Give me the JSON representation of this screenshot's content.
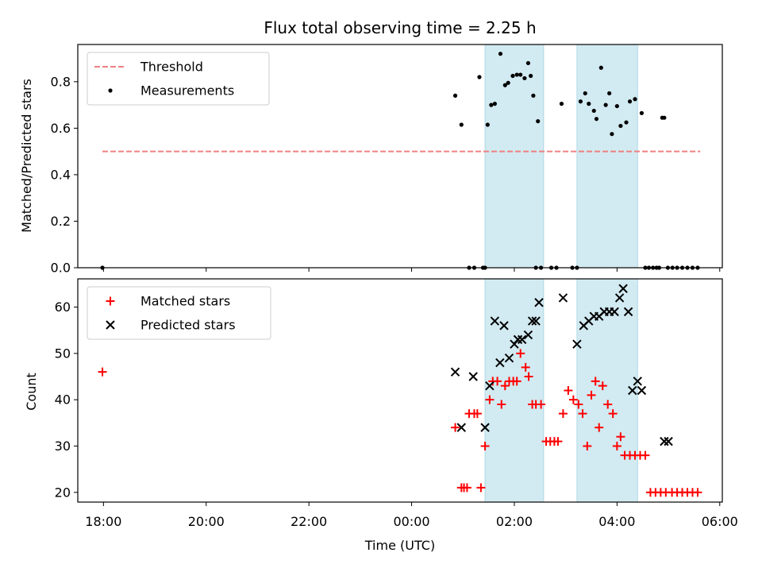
{
  "chart_data": {
    "type": "scatter",
    "title": "Flux total observing time = 2.25 h",
    "xlabel": "Time (UTC)",
    "x_unit": "hours since 18:00 UTC on the first night",
    "xlim": [
      -0.5,
      12.05
    ],
    "xticks": [
      {
        "value": 0,
        "label": "18:00"
      },
      {
        "value": 2,
        "label": "20:00"
      },
      {
        "value": 4,
        "label": "22:00"
      },
      {
        "value": 6,
        "label": "00:00"
      },
      {
        "value": 8,
        "label": "02:00"
      },
      {
        "value": 10,
        "label": "04:00"
      },
      {
        "value": 12,
        "label": "06:00"
      }
    ],
    "shaded_spans": [
      {
        "start": 7.43,
        "end": 8.57,
        "color": "#add8e6"
      },
      {
        "start": 9.22,
        "end": 10.4,
        "color": "#add8e6"
      }
    ],
    "top_panel": {
      "ylabel": "Matched/Predicted stars",
      "ylim": [
        0,
        0.96
      ],
      "yticks": [
        0.0,
        0.2,
        0.4,
        0.6,
        0.8
      ],
      "ytick_labels": [
        "0.0",
        "0.2",
        "0.4",
        "0.6",
        "0.8"
      ],
      "legend": {
        "position": "upper-left",
        "entries": [
          "Threshold",
          "Measurements"
        ]
      },
      "threshold": {
        "name": "Threshold",
        "y": 0.5,
        "x_range": [
          -0.02,
          11.62
        ],
        "color": "#f08080"
      },
      "measurements": {
        "name": "Measurements",
        "color": "#000000",
        "x": [
          -0.02,
          6.85,
          6.97,
          7.12,
          7.22,
          7.32,
          7.39,
          7.43,
          7.48,
          7.55,
          7.62,
          7.73,
          7.82,
          7.88,
          7.97,
          8.05,
          8.12,
          8.2,
          8.27,
          8.32,
          8.37,
          8.42,
          8.46,
          8.52,
          8.72,
          8.82,
          8.92,
          9.13,
          9.22,
          9.29,
          9.38,
          9.45,
          9.55,
          9.6,
          9.69,
          9.78,
          9.85,
          9.9,
          10.0,
          10.07,
          10.18,
          10.25,
          10.35,
          10.48,
          10.55,
          10.62,
          10.7,
          10.77,
          10.82,
          10.88,
          10.92,
          10.99,
          11.08,
          11.17,
          11.27,
          11.37,
          11.47,
          11.57
        ],
        "y": [
          0.0,
          0.74,
          0.615,
          0.0,
          0.0,
          0.82,
          0.0,
          0.0,
          0.615,
          0.7,
          0.705,
          0.92,
          0.785,
          0.795,
          0.825,
          0.83,
          0.83,
          0.815,
          0.88,
          0.825,
          0.74,
          0.0,
          0.63,
          0.0,
          0.0,
          0.0,
          0.705,
          0.0,
          0.0,
          0.715,
          0.75,
          0.705,
          0.675,
          0.64,
          0.86,
          0.7,
          0.75,
          0.575,
          0.695,
          0.61,
          0.625,
          0.715,
          0.725,
          0.665,
          0.0,
          0.0,
          0.0,
          0.0,
          0.0,
          0.645,
          0.645,
          0.0,
          0.0,
          0.0,
          0.0,
          0.0,
          0.0,
          0.0
        ]
      }
    },
    "bottom_panel": {
      "ylabel": "Count",
      "ylim": [
        17.9,
        66.1
      ],
      "yticks": [
        20,
        30,
        40,
        50,
        60
      ],
      "ytick_labels": [
        "20",
        "30",
        "40",
        "50",
        "60"
      ],
      "legend": {
        "position": "upper-left",
        "entries": [
          "Matched stars",
          "Predicted stars"
        ]
      },
      "matched": {
        "name": "Matched stars",
        "color": "#ff0000",
        "x": [
          -0.02,
          6.85,
          6.97,
          7.02,
          7.08,
          7.12,
          7.22,
          7.28,
          7.35,
          7.43,
          7.52,
          7.58,
          7.67,
          7.75,
          7.82,
          7.9,
          7.98,
          8.05,
          8.12,
          8.22,
          8.28,
          8.35,
          8.42,
          8.52,
          8.62,
          8.7,
          8.78,
          8.85,
          8.95,
          9.05,
          9.15,
          9.25,
          9.33,
          9.42,
          9.5,
          9.58,
          9.65,
          9.72,
          9.82,
          9.92,
          10.0,
          10.07,
          10.15,
          10.25,
          10.35,
          10.45,
          10.55,
          10.65,
          10.75,
          10.85,
          10.95,
          11.07,
          11.17,
          11.27,
          11.37,
          11.47,
          11.57
        ],
        "y": [
          46,
          34,
          21,
          21,
          21,
          37,
          37,
          37,
          21,
          30,
          40,
          44,
          44,
          39,
          43,
          44,
          44,
          44,
          50,
          47,
          45,
          39,
          39,
          39,
          31,
          31,
          31,
          31,
          37,
          42,
          40,
          39,
          37,
          30,
          41,
          44,
          34,
          43,
          39,
          37,
          30,
          32,
          28,
          28,
          28,
          28,
          28,
          20,
          20,
          20,
          20,
          20,
          20,
          20,
          20,
          20,
          20
        ]
      },
      "predicted": {
        "name": "Predicted stars",
        "color": "#000000",
        "x": [
          6.85,
          6.97,
          7.2,
          7.43,
          7.52,
          7.62,
          7.72,
          7.8,
          7.9,
          8.0,
          8.07,
          8.15,
          8.27,
          8.35,
          8.42,
          8.48,
          8.95,
          9.22,
          9.35,
          9.45,
          9.55,
          9.65,
          9.75,
          9.85,
          9.95,
          10.05,
          10.12,
          10.22,
          10.3,
          10.4,
          10.48,
          10.92,
          11.0
        ],
        "y": [
          46,
          34,
          45,
          34,
          43,
          57,
          48,
          56,
          49,
          52,
          53,
          53,
          54,
          57,
          57,
          61,
          62,
          52,
          56,
          57,
          58,
          58,
          59,
          59,
          59,
          62,
          64,
          59,
          42,
          44,
          42,
          31,
          31
        ]
      }
    }
  }
}
